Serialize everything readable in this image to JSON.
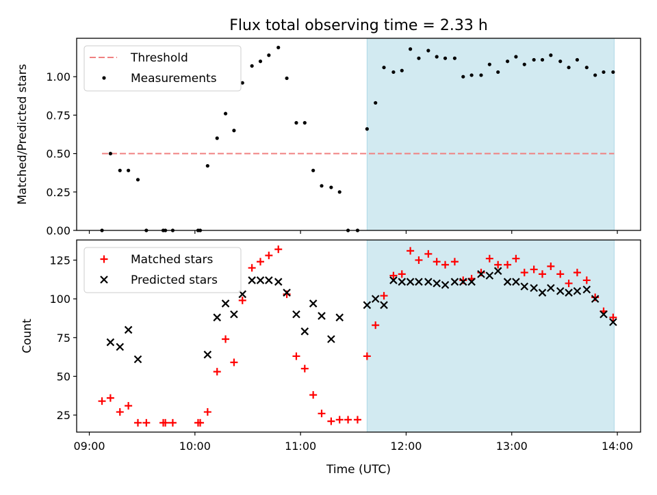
{
  "chart_data": {
    "type": "scatter",
    "title": "Flux total observing time = 2.33 h",
    "xlabel": "Time (UTC)",
    "x_ticks": [
      "09:00",
      "10:00",
      "11:00",
      "12:00",
      "13:00",
      "14:00"
    ],
    "x_tick_values": [
      9.0,
      10.0,
      11.0,
      12.0,
      13.0,
      14.0
    ],
    "xlim": [
      8.88,
      14.22
    ],
    "observing_window": [
      11.63,
      13.97
    ],
    "colors": {
      "threshold": "#f08080",
      "measurements": "#000000",
      "matched": "#ff0000",
      "predicted": "#000000",
      "window": "#add8e6"
    },
    "panels": [
      {
        "ylabel": "Matched/Predicted stars",
        "ylim": [
          0,
          1.25
        ],
        "y_ticks": [
          "0.00",
          "0.25",
          "0.50",
          "0.75",
          "1.00"
        ],
        "y_tick_values": [
          0,
          0.25,
          0.5,
          0.75,
          1.0
        ],
        "legend_position": "upper left",
        "threshold": {
          "name": "Threshold",
          "value": 0.5,
          "x_range": [
            9.12,
            13.97
          ]
        },
        "series": [
          {
            "name": "Measurements",
            "marker": "dot",
            "x": [
              9.12,
              9.2,
              9.29,
              9.37,
              9.46,
              9.54,
              9.7,
              9.72,
              9.79,
              10.03,
              10.05,
              10.12,
              10.21,
              10.29,
              10.37,
              10.45,
              10.54,
              10.62,
              10.7,
              10.79,
              10.87,
              10.96,
              11.04,
              11.12,
              11.2,
              11.29,
              11.37,
              11.45,
              11.54,
              11.63,
              11.71,
              11.79,
              11.88,
              11.96,
              12.04,
              12.12,
              12.21,
              12.29,
              12.37,
              12.46,
              12.54,
              12.62,
              12.71,
              12.79,
              12.87,
              12.96,
              13.04,
              13.12,
              13.21,
              13.29,
              13.37,
              13.46,
              13.54,
              13.62,
              13.71,
              13.79,
              13.87,
              13.96
            ],
            "y": [
              0.0,
              0.5,
              0.39,
              0.39,
              0.33,
              0.0,
              0.0,
              0.0,
              0.0,
              0.0,
              0.0,
              0.42,
              0.6,
              0.76,
              0.65,
              0.96,
              1.07,
              1.1,
              1.14,
              1.19,
              0.99,
              0.7,
              0.7,
              0.39,
              0.29,
              0.28,
              0.25,
              0.0,
              0.0,
              0.66,
              0.83,
              1.06,
              1.03,
              1.04,
              1.18,
              1.12,
              1.17,
              1.13,
              1.12,
              1.12,
              1.0,
              1.01,
              1.01,
              1.08,
              1.03,
              1.1,
              1.13,
              1.08,
              1.11,
              1.11,
              1.14,
              1.1,
              1.06,
              1.11,
              1.06,
              1.01,
              1.03,
              1.03
            ]
          }
        ]
      },
      {
        "ylabel": "Count",
        "ylim": [
          14,
          138
        ],
        "y_ticks": [
          "25",
          "50",
          "75",
          "100",
          "125"
        ],
        "y_tick_values": [
          25,
          50,
          75,
          100,
          125
        ],
        "legend_position": "upper left",
        "series": [
          {
            "name": "Matched stars",
            "marker": "plus",
            "x": [
              9.12,
              9.2,
              9.29,
              9.37,
              9.46,
              9.54,
              9.7,
              9.72,
              9.79,
              10.03,
              10.05,
              10.12,
              10.21,
              10.29,
              10.37,
              10.45,
              10.54,
              10.62,
              10.7,
              10.79,
              10.87,
              10.96,
              11.04,
              11.12,
              11.2,
              11.29,
              11.37,
              11.45,
              11.54,
              11.63,
              11.71,
              11.79,
              11.88,
              11.96,
              12.04,
              12.12,
              12.21,
              12.29,
              12.37,
              12.46,
              12.54,
              12.62,
              12.71,
              12.79,
              12.87,
              12.96,
              13.04,
              13.12,
              13.21,
              13.29,
              13.37,
              13.46,
              13.54,
              13.62,
              13.71,
              13.79,
              13.87,
              13.96
            ],
            "y": [
              34,
              36,
              27,
              31,
              20,
              20,
              20,
              20,
              20,
              20,
              20,
              27,
              53,
              74,
              59,
              99,
              120,
              124,
              128,
              132,
              103,
              63,
              55,
              38,
              26,
              21,
              22,
              22,
              22,
              63,
              83,
              102,
              115,
              116,
              131,
              125,
              129,
              124,
              122,
              124,
              112,
              113,
              117,
              126,
              122,
              122,
              126,
              117,
              119,
              116,
              121,
              116,
              110,
              117,
              112,
              101,
              92,
              88
            ]
          },
          {
            "name": "Predicted stars",
            "marker": "x",
            "x": [
              9.2,
              9.29,
              9.37,
              9.46,
              10.12,
              10.21,
              10.29,
              10.37,
              10.45,
              10.54,
              10.62,
              10.7,
              10.79,
              10.87,
              10.96,
              11.04,
              11.12,
              11.2,
              11.29,
              11.37,
              11.63,
              11.71,
              11.79,
              11.88,
              11.96,
              12.04,
              12.12,
              12.21,
              12.29,
              12.37,
              12.46,
              12.54,
              12.62,
              12.71,
              12.79,
              12.87,
              12.96,
              13.04,
              13.12,
              13.21,
              13.29,
              13.37,
              13.46,
              13.54,
              13.62,
              13.71,
              13.79,
              13.87,
              13.96
            ],
            "y": [
              72,
              69,
              80,
              61,
              64,
              88,
              97,
              90,
              103,
              112,
              112,
              112,
              111,
              104,
              90,
              79,
              97,
              89,
              74,
              88,
              96,
              100,
              96,
              112,
              111,
              111,
              111,
              111,
              110,
              109,
              111,
              111,
              111,
              116,
              115,
              118,
              111,
              111,
              108,
              107,
              104,
              107,
              105,
              104,
              105,
              106,
              100,
              90,
              85
            ]
          }
        ]
      }
    ]
  }
}
